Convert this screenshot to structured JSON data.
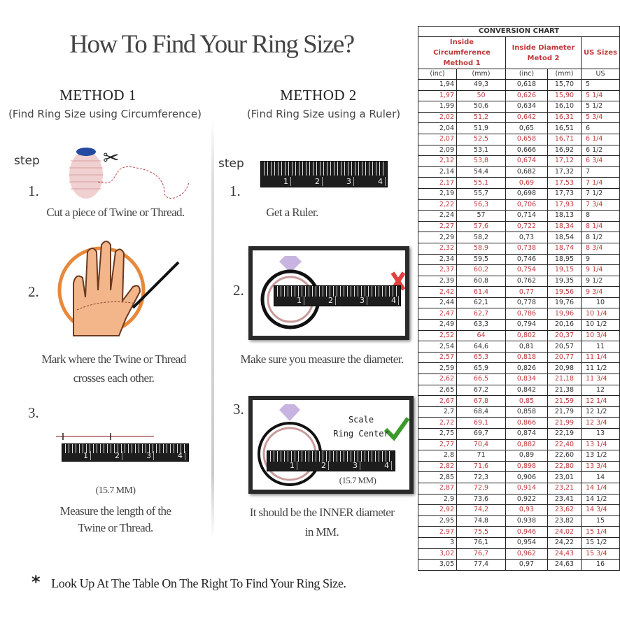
{
  "title": "How To Find Your Ring Size?",
  "method1": {
    "heading": "METHOD 1",
    "subtitle": "(Find Ring Size using Circumference)",
    "step_label": "step",
    "steps": [
      {
        "number": "1.",
        "text": "Cut a piece of  Twine or Thread."
      },
      {
        "number": "2.",
        "text1": "Mark where the Twine or Thread",
        "text2": "crosses each other."
      },
      {
        "number": "3.",
        "measure": "(15.7 MM)",
        "text1": "Measure the length of the",
        "text2": "Twine or Thread."
      }
    ]
  },
  "method2": {
    "heading": "METHOD 2",
    "subtitle": "(Find Ring Size using a Ruler)",
    "step_label": "step",
    "steps": [
      {
        "number": "1.",
        "text": "Get a Ruler."
      },
      {
        "number": "2.",
        "text": "Make sure you measure the diameter."
      },
      {
        "number": "3.",
        "scale_line1": "Scale",
        "scale_line2": "Ring Center",
        "measure": "(15.7 MM)",
        "text1": "It should be the INNER diameter",
        "text2": "in MM."
      }
    ]
  },
  "ruler_numbers": [
    "1",
    "2",
    "3",
    "4"
  ],
  "footnote": {
    "mark": "*",
    "text": "Look Up At The Table On The Right To Find Your Ring Size."
  },
  "colors": {
    "accent_red": "#c0393b",
    "check_green": "#3a9a2a",
    "cross_red": "#e04040",
    "ring_pink": "#c99a9a"
  },
  "conversion_chart": {
    "title": "CONVERSION CHART",
    "group1": "Inside Circumference Method 1",
    "group2": "Inside Diameter Metod 2",
    "group3": "US Sizes",
    "units": [
      "(inc)",
      "(mm)",
      "(inc)",
      "(mm)",
      "US"
    ],
    "rows": [
      [
        "1,94",
        "49,3",
        "0,618",
        "15,70",
        "5"
      ],
      [
        "1,97",
        "50",
        "0,626",
        "15,90",
        "5 1/4"
      ],
      [
        "1,99",
        "50,6",
        "0,634",
        "16,10",
        "5 1/2"
      ],
      [
        "2,02",
        "51,2",
        "0,642",
        "16,31",
        "5 3/4"
      ],
      [
        "2,04",
        "51,9",
        "0,65",
        "16,51",
        "6"
      ],
      [
        "2,07",
        "52,5",
        "0,658",
        "16,71",
        "6 1/4"
      ],
      [
        "2,09",
        "53,1",
        "0,666",
        "16,92",
        "6 1/2"
      ],
      [
        "2,12",
        "53,8",
        "0,674",
        "17,12",
        "6 3/4"
      ],
      [
        "2,14",
        "54,4",
        "0,682",
        "17,32",
        "7"
      ],
      [
        "2,17",
        "55,1",
        "0,69",
        "17,53",
        "7 1/4"
      ],
      [
        "2,19",
        "55,7",
        "0,698",
        "17,73",
        "7 1/2"
      ],
      [
        "2,22",
        "56,3",
        "0,706",
        "17,93",
        "7 3/4"
      ],
      [
        "2,24",
        "57",
        "0,714",
        "18,13",
        "8"
      ],
      [
        "2,27",
        "57,6",
        "0,722",
        "18,34",
        "8 1/4"
      ],
      [
        "2,29",
        "58,2",
        "0,73",
        "18,54",
        "8 1/2"
      ],
      [
        "2,32",
        "58,9",
        "0,738",
        "18,74",
        "8 3/4"
      ],
      [
        "2,34",
        "59,5",
        "0,746",
        "18,95",
        "9"
      ],
      [
        "2,37",
        "60,2",
        "0,754",
        "19,15",
        "9 1/4"
      ],
      [
        "2,39",
        "60,8",
        "0,762",
        "19,35",
        "9 1/2"
      ],
      [
        "2,42",
        "61,4",
        "0,77",
        "19,56",
        "9 3/4"
      ],
      [
        "2,44",
        "62,1",
        "0,778",
        "19,76",
        "10"
      ],
      [
        "2,47",
        "62,7",
        "0,786",
        "19,96",
        "10 1/4"
      ],
      [
        "2,49",
        "63,3",
        "0,794",
        "20,16",
        "10 1/2"
      ],
      [
        "2,52",
        "64",
        "0,802",
        "20,37",
        "10 3/4"
      ],
      [
        "2,54",
        "64,6",
        "0,81",
        "20,57",
        "11"
      ],
      [
        "2,57",
        "65,3",
        "0,818",
        "20,77",
        "11 1/4"
      ],
      [
        "2,59",
        "65,9",
        "0,826",
        "20,98",
        "11 1/2"
      ],
      [
        "2,62",
        "66,5",
        "0,834",
        "21,18",
        "11 3/4"
      ],
      [
        "2,65",
        "67,2",
        "0,842",
        "21,38",
        "12"
      ],
      [
        "2,67",
        "67,8",
        "0,85",
        "21,59",
        "12 1/4"
      ],
      [
        "2,7",
        "68,4",
        "0,858",
        "21,79",
        "12 1/2"
      ],
      [
        "2,72",
        "69,1",
        "0,866",
        "21,99",
        "12 3/4"
      ],
      [
        "2,75",
        "69,7",
        "0,874",
        "22,19",
        "13"
      ],
      [
        "2,77",
        "70,4",
        "0,882",
        "22,40",
        "13 1/4"
      ],
      [
        "2,8",
        "71",
        "0,89",
        "22,60",
        "13 1/2"
      ],
      [
        "2,82",
        "71,6",
        "0,898",
        "22,80",
        "13 3/4"
      ],
      [
        "2,85",
        "72,3",
        "0,906",
        "23,01",
        "14"
      ],
      [
        "2,87",
        "72,9",
        "0,914",
        "23,21",
        "14 1/4"
      ],
      [
        "2,9",
        "73,6",
        "0,922",
        "23,41",
        "14 1/2"
      ],
      [
        "2,92",
        "74,2",
        "0,93",
        "23,62",
        "14 3/4"
      ],
      [
        "2,95",
        "74,8",
        "0,938",
        "23,82",
        "15"
      ],
      [
        "2,97",
        "75,5",
        "0,946",
        "24,02",
        "15 1/4"
      ],
      [
        "3",
        "76,1",
        "0,954",
        "24,22",
        "15 1/2"
      ],
      [
        "3,02",
        "76,7",
        "0,962",
        "24,43",
        "15 3/4"
      ],
      [
        "3,05",
        "77,4",
        "0,97",
        "24,63",
        "16"
      ]
    ]
  }
}
